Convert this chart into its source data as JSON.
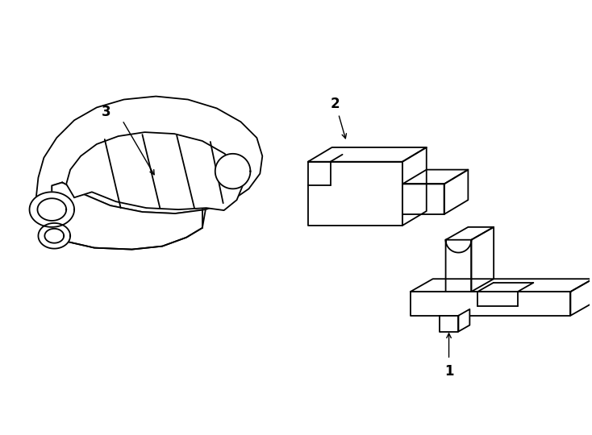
{
  "background_color": "#ffffff",
  "line_color": "#000000",
  "line_width": 1.3,
  "fig_width": 7.34,
  "fig_height": 5.4,
  "dpi": 100
}
